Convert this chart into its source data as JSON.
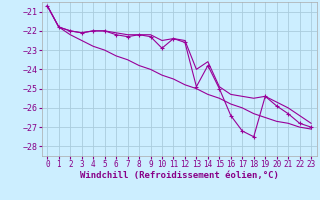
{
  "xlabel": "Windchill (Refroidissement éolien,°C)",
  "bg_color": "#cceeff",
  "grid_color": "#aaccdd",
  "line_color": "#990099",
  "x_hours": [
    0,
    1,
    2,
    3,
    4,
    5,
    6,
    7,
    8,
    9,
    10,
    11,
    12,
    13,
    14,
    15,
    16,
    17,
    18,
    19,
    20,
    21,
    22,
    23
  ],
  "windchill": [
    -20.7,
    -21.8,
    -22.0,
    -22.1,
    -22.0,
    -22.0,
    -22.2,
    -22.3,
    -22.2,
    -22.3,
    -22.9,
    -22.4,
    -22.6,
    -24.9,
    -23.8,
    -25.0,
    -26.4,
    -27.2,
    -27.5,
    -25.4,
    -25.9,
    -26.3,
    -26.8,
    -27.0
  ],
  "min_line": [
    -20.7,
    -21.8,
    -22.2,
    -22.5,
    -22.8,
    -23.0,
    -23.3,
    -23.5,
    -23.8,
    -24.0,
    -24.3,
    -24.5,
    -24.8,
    -25.0,
    -25.3,
    -25.5,
    -25.8,
    -26.0,
    -26.3,
    -26.5,
    -26.7,
    -26.8,
    -27.0,
    -27.1
  ],
  "max_line": [
    -20.7,
    -21.8,
    -22.0,
    -22.1,
    -22.0,
    -22.0,
    -22.1,
    -22.2,
    -22.2,
    -22.2,
    -22.5,
    -22.4,
    -22.5,
    -24.0,
    -23.6,
    -24.9,
    -25.3,
    -25.4,
    -25.5,
    -25.4,
    -25.7,
    -26.0,
    -26.4,
    -26.8
  ],
  "ylim": [
    -28.5,
    -20.5
  ],
  "yticks": [
    -28,
    -27,
    -26,
    -25,
    -24,
    -23,
    -22,
    -21
  ],
  "xticks": [
    0,
    1,
    2,
    3,
    4,
    5,
    6,
    7,
    8,
    9,
    10,
    11,
    12,
    13,
    14,
    15,
    16,
    17,
    18,
    19,
    20,
    21,
    22,
    23
  ],
  "tick_color": "#880088",
  "label_fontsize": 5.5,
  "xlabel_fontsize": 6.5
}
